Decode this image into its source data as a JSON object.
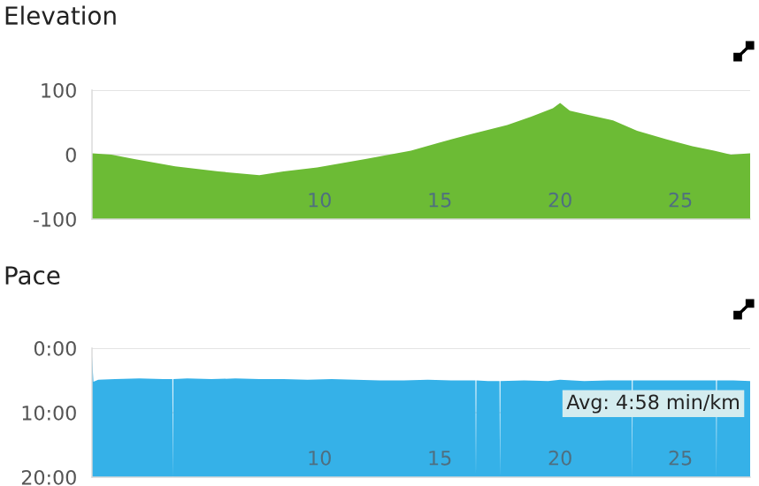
{
  "chart_data": [
    {
      "type": "area",
      "title": "Elevation",
      "x": [
        0.54,
        1.35,
        2.3,
        4.0,
        5.8,
        7.5,
        8.5,
        9.9,
        11.9,
        13.8,
        15.0,
        16.3,
        17.8,
        18.8,
        19.7,
        20.0,
        20.4,
        21.0,
        22.2,
        23.2,
        24.4,
        25.5,
        26.4,
        27.1,
        27.9
      ],
      "series": [
        {
          "color": "#6cbb35",
          "values": [
            2,
            0,
            -7,
            -18,
            -26,
            -32,
            -26,
            -20,
            -7,
            6,
            19,
            32,
            46,
            59,
            72,
            80,
            68,
            63,
            53,
            37,
            24,
            13,
            6,
            0,
            2
          ]
        }
      ],
      "xlim": [
        0.54,
        27.9
      ],
      "xticks": [
        10,
        15,
        20,
        25
      ],
      "ylim": [
        -100,
        100
      ],
      "yticks": [
        -100,
        0,
        100
      ],
      "grid": "y"
    },
    {
      "type": "area",
      "title": "Pace",
      "x": [
        0.54,
        0.6,
        0.8,
        1.5,
        2.5,
        3.5,
        3.88,
        3.9,
        3.92,
        4.5,
        5.5,
        6.5,
        7.5,
        8.5,
        9.5,
        10.5,
        11.5,
        12.5,
        13.5,
        14.5,
        15.5,
        16.48,
        16.5,
        16.52,
        17.0,
        17.48,
        17.5,
        17.52,
        18.5,
        19.5,
        20.0,
        21.0,
        22.0,
        22.98,
        23.0,
        23.02,
        24.0,
        25.0,
        26.0,
        26.48,
        26.5,
        26.52,
        27.2,
        27.9
      ],
      "series": [
        {
          "color": "#35b1e8",
          "values": [
            1.2,
            5.2,
            4.9,
            4.8,
            4.7,
            4.8,
            4.8,
            20,
            4.8,
            4.7,
            4.8,
            4.7,
            4.8,
            4.8,
            4.9,
            4.8,
            4.9,
            5.0,
            5.0,
            4.9,
            5.0,
            5.0,
            20,
            5.0,
            5.1,
            5.1,
            20,
            5.1,
            5.0,
            5.1,
            4.9,
            5.1,
            5.0,
            5.0,
            20,
            5.0,
            5.0,
            5.0,
            5.0,
            5.0,
            20,
            5.0,
            5.0,
            5.1
          ]
        }
      ],
      "xlim": [
        0.54,
        27.9
      ],
      "xticks": [
        10,
        15,
        20,
        25
      ],
      "ylim": [
        20,
        0
      ],
      "yticks": [
        {
          "value": 0,
          "label": "0:00"
        },
        {
          "value": 10,
          "label": "10:00"
        },
        {
          "value": 20,
          "label": "20:00"
        }
      ],
      "grid": "y",
      "annotations": [
        "Avg: 4:58 min/km"
      ]
    }
  ]
}
